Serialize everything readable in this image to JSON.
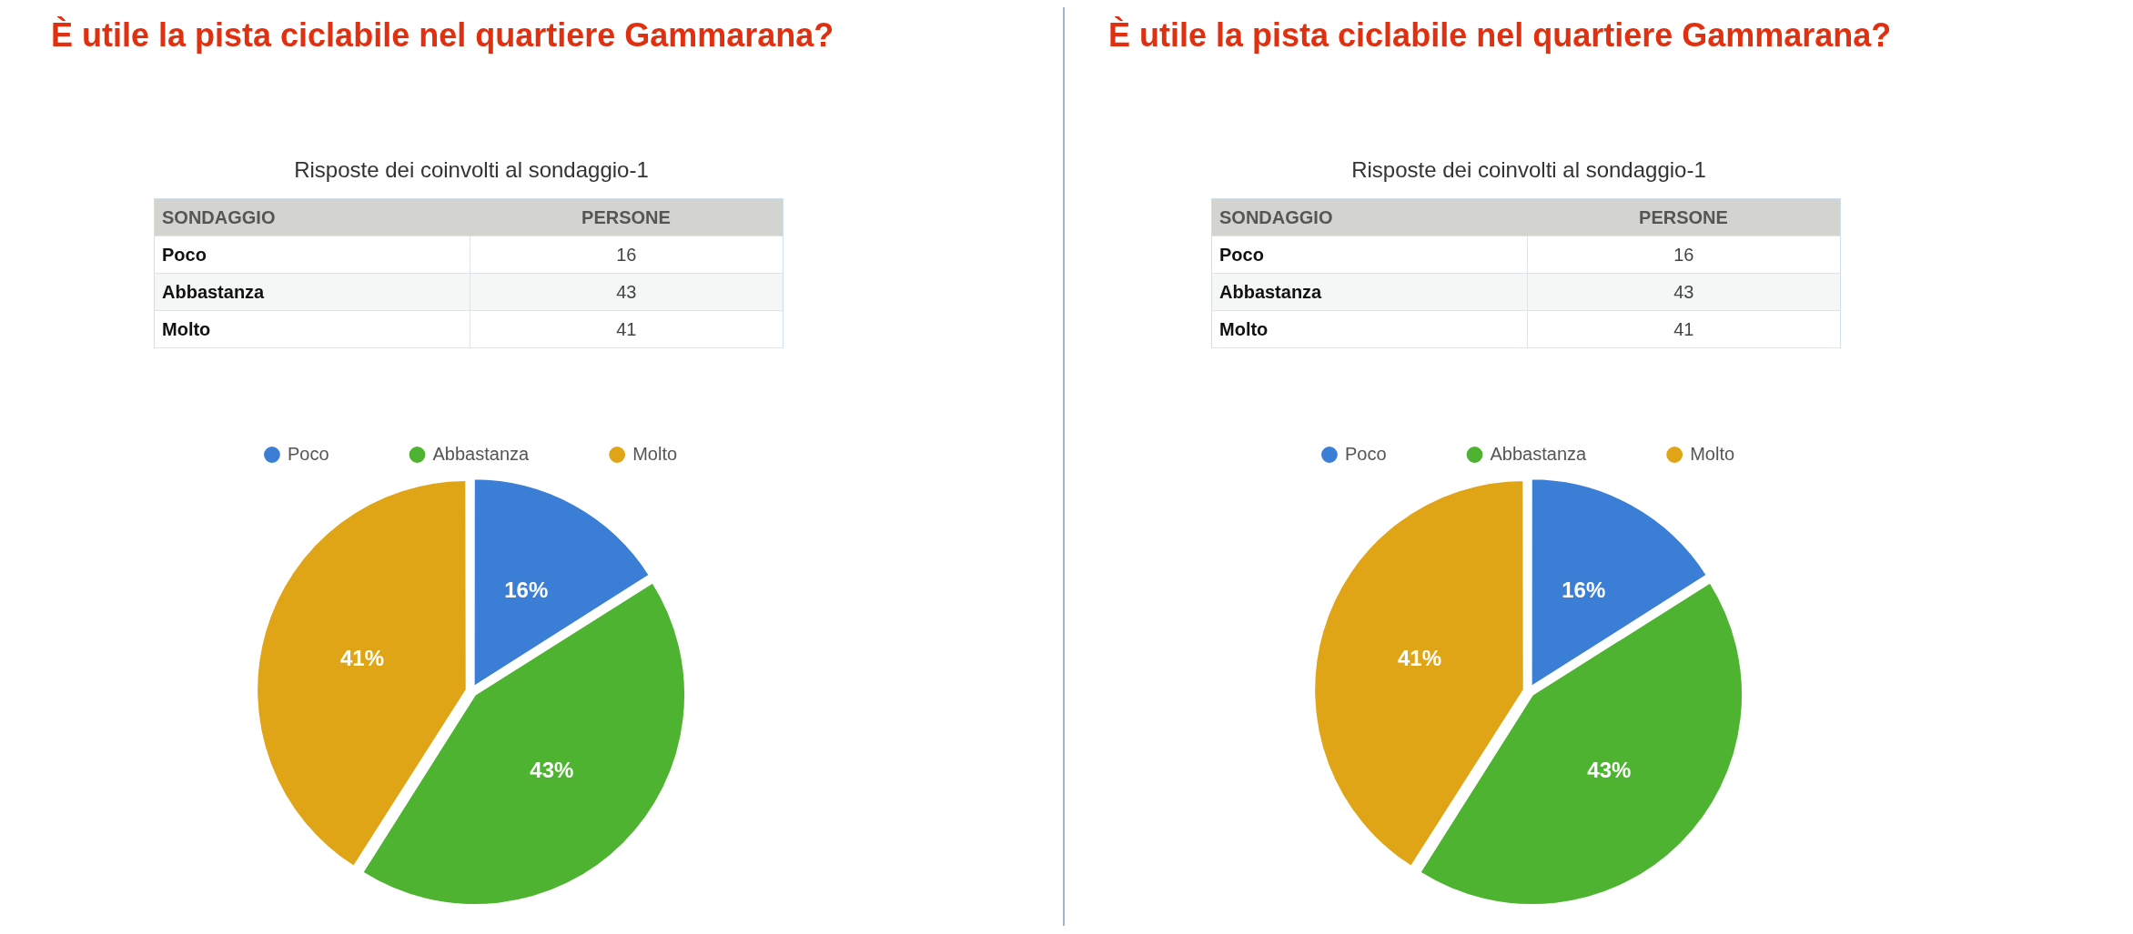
{
  "chart_data": [
    {
      "type": "other",
      "title": "È utile la pista ciclabile nel quartiere Gammarana?",
      "subtitle": "Risposte dei coinvolti al sondaggio-1",
      "categories": [
        "Poco",
        "Abbastanza",
        "Molto"
      ],
      "values": [
        16,
        43,
        41
      ],
      "annotations": [
        "SONDAGGIO",
        "PERSONE"
      ],
      "data_labels": true
    },
    {
      "type": "pie",
      "categories": [
        "Poco",
        "Abbastanza",
        "Molto"
      ],
      "values": [
        16,
        43,
        41
      ],
      "colors": [
        "#3a7fd5",
        "#4db331",
        "#e0a516"
      ],
      "value_labels": [
        "16%",
        "43%",
        "41%"
      ],
      "legend": "top"
    },
    {
      "type": "other",
      "title": "È utile la pista ciclabile nel quartiere Gammarana?",
      "subtitle": "Risposte dei coinvolti al sondaggio-1",
      "categories": [
        "Poco",
        "Abbastanza",
        "Molto"
      ],
      "values": [
        16,
        43,
        41
      ],
      "annotations": [
        "SONDAGGIO",
        "PERSONE"
      ],
      "data_labels": true
    },
    {
      "type": "pie",
      "categories": [
        "Poco",
        "Abbastanza",
        "Molto"
      ],
      "values": [
        16,
        43,
        41
      ],
      "colors": [
        "#3a7fd5",
        "#4db331",
        "#e0a516"
      ],
      "value_labels": [
        "16%",
        "43%",
        "41%"
      ],
      "legend": "top"
    }
  ]
}
